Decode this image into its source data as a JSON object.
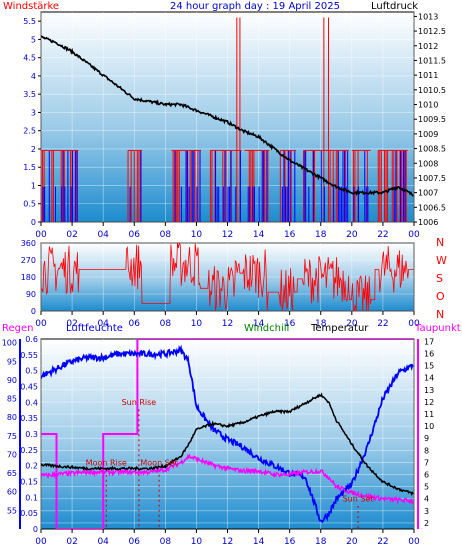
{
  "header": {
    "left": "Windstärke",
    "center": "24 hour graph day : 19 April 2025",
    "right": "Luftdruck"
  },
  "bottom_header": {
    "regen": "Regen",
    "luftfeuchte": "Luftfeuchte",
    "windchill": "Windchill",
    "temperatur": "Temperatur",
    "taupunkt": "Taupunkt"
  },
  "colors": {
    "wind": "#ff0000",
    "gust": "#0000ff",
    "pressure": "#000000",
    "humidity": "#0000ff",
    "temperature": "#000000",
    "windchill": "#008000",
    "dewpoint": "#ff00ff",
    "rain": "#ff00ff",
    "event": "#cc0000",
    "panel_top": "#ffffff",
    "panel_bottom": "#1e8ccf"
  },
  "chart_data": [
    {
      "type": "bar+line",
      "name": "wind-pressure",
      "x_ticks": [
        "00",
        "02",
        "04",
        "06",
        "08",
        "10",
        "12",
        "14",
        "16",
        "18",
        "20",
        "22",
        "00"
      ],
      "left_axis": {
        "title": "Windstärke",
        "ticks": [
          "0",
          "0.5",
          "1",
          "1.5",
          "2",
          "2.5",
          "3",
          "3.5",
          "4",
          "4.5",
          "5",
          "5.5"
        ],
        "range": [
          0,
          5.75
        ]
      },
      "right_axis": {
        "title": "Luftdruck",
        "ticks": [
          "1006",
          "1006.5",
          "1007",
          "1007.5",
          "1008",
          "1008.5",
          "1009",
          "1009.5",
          "1010",
          "1010.5",
          "1011",
          "1011.5",
          "1012",
          "1012.5",
          "1013"
        ],
        "range": [
          1006,
          1013.15
        ]
      },
      "wind_active_hours": [
        [
          0,
          2.4
        ],
        [
          5.5,
          6.4
        ],
        [
          8.3,
          10.2
        ],
        [
          10.8,
          12.8
        ],
        [
          13.0,
          14.6
        ],
        [
          15.3,
          16.3
        ],
        [
          16.8,
          19.8
        ],
        [
          20.0,
          21.2
        ],
        [
          21.7,
          23.6
        ]
      ],
      "wind_dense_hours": [
        [
          9.6,
          10.2
        ],
        [
          12.3,
          13.2
        ],
        [
          17.6,
          18.6
        ]
      ],
      "pressure": {
        "hours": [
          0,
          1,
          2,
          3,
          4,
          5,
          6,
          7,
          8,
          9,
          10,
          11,
          12,
          13,
          14,
          15,
          16,
          17,
          18,
          19,
          20,
          21,
          22,
          23,
          24
        ],
        "values": [
          1012.3,
          1012.1,
          1011.8,
          1011.4,
          1011.0,
          1010.6,
          1010.2,
          1010.1,
          1010.0,
          1010.0,
          1009.8,
          1009.6,
          1009.4,
          1009.1,
          1008.9,
          1008.5,
          1008.1,
          1007.8,
          1007.5,
          1007.2,
          1007.0,
          1007.0,
          1007.0,
          1007.2,
          1006.9
        ]
      }
    },
    {
      "type": "scatter",
      "name": "wind-direction",
      "left_axis": {
        "ticks": [
          "0",
          "90",
          "180",
          "270",
          "360"
        ],
        "range": [
          0,
          360
        ]
      },
      "right_labels": [
        "N",
        "W",
        "S",
        "O",
        "N"
      ],
      "x_ticks": [
        "00",
        "02",
        "04",
        "06",
        "08",
        "10",
        "12",
        "14",
        "16",
        "18",
        "20",
        "22",
        "00"
      ],
      "segments": [
        {
          "from": 0,
          "to": 2.4,
          "base": 220
        },
        {
          "from": 2.4,
          "to": 5.5,
          "base": 220
        },
        {
          "from": 5.5,
          "to": 6.5,
          "base": 240
        },
        {
          "from": 6.5,
          "to": 8.3,
          "base": 40
        },
        {
          "from": 8.3,
          "to": 10.2,
          "base": 250
        },
        {
          "from": 10.2,
          "to": 12.5,
          "base": 120
        },
        {
          "from": 12.5,
          "to": 14.5,
          "base": 200
        },
        {
          "from": 14.5,
          "to": 16.5,
          "base": 100
        },
        {
          "from": 16.5,
          "to": 19.8,
          "base": 170
        },
        {
          "from": 19.8,
          "to": 21.5,
          "base": 60
        },
        {
          "from": 21.5,
          "to": 24,
          "base": 220
        }
      ]
    },
    {
      "type": "line",
      "name": "temperature-humidity",
      "x_ticks": [
        "00",
        "02",
        "04",
        "06",
        "08",
        "10",
        "12",
        "14",
        "16",
        "18",
        "20",
        "22",
        "00"
      ],
      "rain_axis": {
        "ticks": [
          "0",
          "0.05",
          "0.1",
          "0.15",
          "0.2",
          "0.25",
          "0.3",
          "0.35",
          "0.4",
          "0.45",
          "0.5",
          "0.55",
          "0.6"
        ],
        "range": [
          0,
          0.6
        ]
      },
      "humidity_axis": {
        "ticks": [
          "55",
          "60",
          "65",
          "70",
          "75",
          "80",
          "85",
          "90",
          "95",
          "100"
        ],
        "range": [
          50,
          101
        ]
      },
      "temp_axis": {
        "ticks": [
          "2",
          "3",
          "4",
          "5",
          "6",
          "7",
          "8",
          "9",
          "10",
          "11",
          "12",
          "13",
          "14",
          "15",
          "16",
          "17"
        ],
        "range": [
          1.5,
          17.2
        ]
      },
      "hours": [
        0,
        1,
        2,
        3,
        4,
        5,
        6,
        7,
        8,
        9,
        9.5,
        10,
        11,
        12,
        13,
        14,
        15,
        16,
        17,
        18,
        18.5,
        19,
        20,
        21,
        22,
        23,
        24
      ],
      "temperature": [
        6.8,
        6.7,
        6.6,
        6.5,
        6.5,
        6.5,
        6.5,
        6.5,
        6.7,
        7.5,
        8.5,
        9.7,
        10.2,
        10.0,
        10.3,
        10.8,
        11.2,
        11.2,
        11.9,
        12.6,
        12.0,
        10.5,
        8.5,
        6.7,
        5.4,
        4.8,
        4.4
      ],
      "dewpoint": [
        5.9,
        6.0,
        6.1,
        6.2,
        6.2,
        6.2,
        6.2,
        6.2,
        6.4,
        7.0,
        7.5,
        7.3,
        6.8,
        6.5,
        6.3,
        6.3,
        6.0,
        6.0,
        6.2,
        6.3,
        5.8,
        5.0,
        4.5,
        4.2,
        4.0,
        3.9,
        3.8
      ],
      "humidity": [
        91,
        93,
        95,
        96,
        96,
        97,
        97,
        97,
        97,
        98,
        95,
        83,
        77,
        74,
        72,
        69,
        67,
        65,
        64,
        52,
        54,
        58,
        62,
        72,
        85,
        92,
        94
      ],
      "rain": {
        "hours": [
          0,
          1,
          1,
          4,
          4,
          6.2,
          6.2,
          24
        ],
        "values": [
          0.3,
          0.3,
          0,
          0,
          0.3,
          0.3,
          0.6,
          0.6
        ]
      },
      "events": [
        {
          "label": "Moon Rise",
          "hour": 4.2,
          "marker_y": 7
        },
        {
          "label": "Sun Rise",
          "hour": 6.3,
          "marker_y": 12
        },
        {
          "label": "Moon Set",
          "hour": 7.6,
          "marker_y": 7
        },
        {
          "label": "Sun Set",
          "hour": 20.4,
          "marker_y": 4
        }
      ]
    }
  ]
}
